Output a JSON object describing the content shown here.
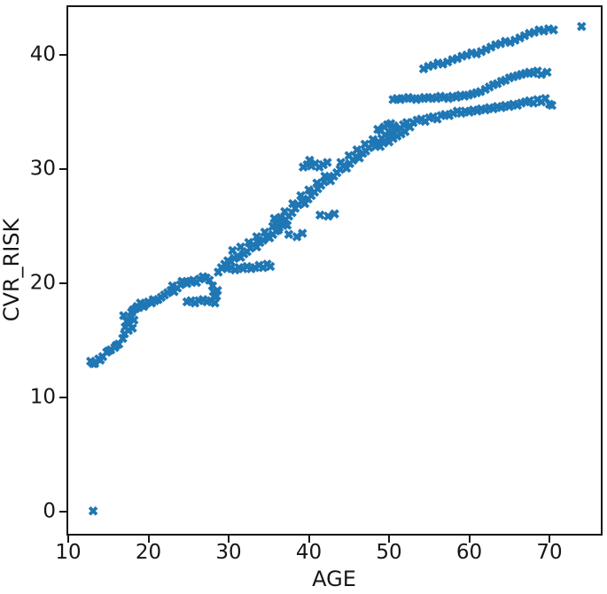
{
  "chart_data": {
    "type": "scatter",
    "title": "",
    "xlabel": "AGE",
    "ylabel": "CVR_RISK",
    "xlim": [
      10,
      76.4
    ],
    "ylim": [
      -1.9,
      44.2
    ],
    "xticks": [
      10,
      20,
      30,
      40,
      50,
      60,
      70
    ],
    "yticks": [
      0,
      10,
      20,
      30,
      40
    ],
    "grid": false,
    "legend": "none",
    "marker": "X",
    "marker_color": "#1f77b4",
    "axis_color": "#161616",
    "points": [
      [
        13.1,
        0.1
      ],
      [
        74,
        42.5
      ],
      [
        12.8,
        13.2
      ],
      [
        13.1,
        13
      ],
      [
        13.3,
        13
      ],
      [
        13.8,
        13.4
      ],
      [
        14,
        13.3
      ],
      [
        14.3,
        13.6
      ],
      [
        14.8,
        14
      ],
      [
        15,
        14.1
      ],
      [
        15.3,
        14.2
      ],
      [
        15.8,
        14.4
      ],
      [
        16,
        14.6
      ],
      [
        16.3,
        14.7
      ],
      [
        16.8,
        15.2
      ],
      [
        17,
        15.6
      ],
      [
        17.1,
        16.2
      ],
      [
        17.3,
        16.7
      ],
      [
        16.9,
        17.2
      ],
      [
        17.5,
        15.9
      ],
      [
        17.6,
        16.5
      ],
      [
        17.8,
        17
      ],
      [
        17.9,
        17.5
      ],
      [
        18.1,
        17.7
      ],
      [
        18,
        16.1
      ],
      [
        18.2,
        16.8
      ],
      [
        18.4,
        17.8
      ],
      [
        18.6,
        18
      ],
      [
        18.8,
        17.9
      ],
      [
        19,
        18.3
      ],
      [
        19.2,
        18.1
      ],
      [
        19.4,
        18
      ],
      [
        19.6,
        18.2
      ],
      [
        20,
        18.4
      ],
      [
        20.4,
        18.3
      ],
      [
        20.6,
        18.6
      ],
      [
        20.8,
        18.5
      ],
      [
        21.2,
        18.6
      ],
      [
        21.6,
        18.8
      ],
      [
        22,
        19
      ],
      [
        22.4,
        19.2
      ],
      [
        22.8,
        19.4
      ],
      [
        23,
        19.8
      ],
      [
        23.2,
        19.3
      ],
      [
        23.6,
        19.6
      ],
      [
        24,
        19.9
      ],
      [
        24.2,
        20.2
      ],
      [
        24.4,
        20.1
      ],
      [
        24.8,
        20
      ],
      [
        25.2,
        20.2
      ],
      [
        25.6,
        20.3
      ],
      [
        26,
        20.1
      ],
      [
        26.4,
        20.4
      ],
      [
        26.8,
        20.6
      ],
      [
        27.2,
        20.5
      ],
      [
        27.6,
        20.3
      ],
      [
        28,
        19.8
      ],
      [
        28.1,
        19.3
      ],
      [
        28.2,
        18.9
      ],
      [
        24.8,
        18.4
      ],
      [
        25.3,
        18.5
      ],
      [
        25.8,
        18.3
      ],
      [
        26.3,
        18.5
      ],
      [
        26.8,
        18.6
      ],
      [
        27.3,
        18.4
      ],
      [
        27.8,
        18.5
      ],
      [
        28.3,
        18.3
      ],
      [
        28.5,
        18.9
      ],
      [
        28.6,
        19.4
      ],
      [
        28.7,
        21
      ],
      [
        29.1,
        21.4
      ],
      [
        29.5,
        21.7
      ],
      [
        29.9,
        22
      ],
      [
        30.3,
        21.9
      ],
      [
        30.7,
        22.2
      ],
      [
        31.1,
        22.4
      ],
      [
        31.5,
        22.3
      ],
      [
        31.9,
        22.6
      ],
      [
        32.3,
        22.8
      ],
      [
        32.7,
        23.1
      ],
      [
        33.1,
        23.4
      ],
      [
        33.5,
        23.2
      ],
      [
        33.9,
        23.6
      ],
      [
        34.3,
        23.8
      ],
      [
        34.7,
        24.1
      ],
      [
        35.1,
        24
      ],
      [
        35.5,
        24.3
      ],
      [
        35.9,
        24.6
      ],
      [
        36.3,
        24.9
      ],
      [
        36.7,
        25.3
      ],
      [
        37.1,
        25.6
      ],
      [
        37.5,
        25.9
      ],
      [
        37.9,
        26.2
      ],
      [
        38.3,
        26.6
      ],
      [
        38.7,
        26.9
      ],
      [
        39.1,
        27.2
      ],
      [
        39.5,
        27
      ],
      [
        39.9,
        27.4
      ],
      [
        40.3,
        27.7
      ],
      [
        40.7,
        28
      ],
      [
        41.1,
        28.3
      ],
      [
        41.5,
        28.6
      ],
      [
        41.9,
        28.9
      ],
      [
        42.3,
        29.2
      ],
      [
        42.7,
        29
      ],
      [
        43.1,
        29.4
      ],
      [
        43.5,
        29.7
      ],
      [
        43.9,
        30
      ],
      [
        44.3,
        30.3
      ],
      [
        44.7,
        30.1
      ],
      [
        45.1,
        30.5
      ],
      [
        45.5,
        30.8
      ],
      [
        45.9,
        31.1
      ],
      [
        46.3,
        31
      ],
      [
        46.7,
        31.4
      ],
      [
        47.1,
        31.6
      ],
      [
        47.5,
        31.9
      ],
      [
        47.9,
        32.2
      ],
      [
        48.3,
        32
      ],
      [
        48.7,
        32.4
      ],
      [
        49.1,
        32.7
      ],
      [
        49.5,
        33
      ],
      [
        49.9,
        32.8
      ],
      [
        50.3,
        33.2
      ],
      [
        30.5,
        22.9
      ],
      [
        31.5,
        23.2
      ],
      [
        32.5,
        23.6
      ],
      [
        33.5,
        24.1
      ],
      [
        34.5,
        24.5
      ],
      [
        35.5,
        25
      ],
      [
        35.7,
        25.7
      ],
      [
        36,
        25.5
      ],
      [
        36.2,
        24.7
      ],
      [
        36.5,
        25.8
      ],
      [
        36.8,
        25.1
      ],
      [
        37,
        26.3
      ],
      [
        37.3,
        25.1
      ],
      [
        38,
        27
      ],
      [
        39,
        27.7
      ],
      [
        40,
        28.2
      ],
      [
        41,
        28.8
      ],
      [
        42,
        29.4
      ],
      [
        44,
        30.6
      ],
      [
        45,
        31.2
      ],
      [
        46,
        31.7
      ],
      [
        47,
        32.2
      ],
      [
        48,
        32.6
      ],
      [
        29.8,
        21.3
      ],
      [
        30.3,
        21.4
      ],
      [
        30.8,
        21.2
      ],
      [
        31.3,
        21.4
      ],
      [
        31.8,
        21.3
      ],
      [
        32.3,
        21.5
      ],
      [
        32.8,
        21.3
      ],
      [
        33.3,
        21.4
      ],
      [
        33.8,
        21.6
      ],
      [
        34.3,
        21.4
      ],
      [
        34.8,
        21.7
      ],
      [
        35.2,
        21.5
      ],
      [
        39.3,
        30.2
      ],
      [
        39.8,
        30.4
      ],
      [
        40.1,
        30.8
      ],
      [
        40.3,
        30.3
      ],
      [
        40.8,
        30.5
      ],
      [
        41.3,
        30.2
      ],
      [
        41.8,
        30.4
      ],
      [
        42.3,
        30.6
      ],
      [
        41.4,
        26
      ],
      [
        42.4,
        25.9
      ],
      [
        43.2,
        26.1
      ],
      [
        37.5,
        24.3
      ],
      [
        38.5,
        24.1
      ],
      [
        39.2,
        24.4
      ],
      [
        48.6,
        33.5
      ],
      [
        48.9,
        32
      ],
      [
        49,
        33.4
      ],
      [
        49.3,
        32.3
      ],
      [
        49.4,
        33.7
      ],
      [
        49.8,
        33.9
      ],
      [
        50,
        32.4
      ],
      [
        50.2,
        34
      ],
      [
        50.5,
        32.7
      ],
      [
        50.6,
        33.8
      ],
      [
        51,
        32.9
      ],
      [
        51,
        33.4
      ],
      [
        51.4,
        33.6
      ],
      [
        51.5,
        33.1
      ],
      [
        51.8,
        33.9
      ],
      [
        52,
        33.3
      ],
      [
        52.2,
        34.1
      ],
      [
        52.6,
        33.7
      ],
      [
        53,
        34.1
      ],
      [
        53.5,
        34.3
      ],
      [
        54,
        34.4
      ],
      [
        54.5,
        34.2
      ],
      [
        55,
        34.5
      ],
      [
        55.5,
        34.6
      ],
      [
        56,
        34.4
      ],
      [
        56.5,
        34.7
      ],
      [
        57,
        34.8
      ],
      [
        57.5,
        34.7
      ],
      [
        58,
        34.9
      ],
      [
        58.5,
        35.1
      ],
      [
        59,
        34.9
      ],
      [
        59.5,
        35.1
      ],
      [
        60,
        35
      ],
      [
        60.5,
        35.2
      ],
      [
        61,
        35.1
      ],
      [
        61.5,
        35.3
      ],
      [
        62,
        35.2
      ],
      [
        62.5,
        35.4
      ],
      [
        63,
        35.3
      ],
      [
        63.5,
        35.5
      ],
      [
        64,
        35.4
      ],
      [
        64.5,
        35.6
      ],
      [
        65,
        35.5
      ],
      [
        65.5,
        35.7
      ],
      [
        66,
        35.6
      ],
      [
        66.5,
        35.8
      ],
      [
        67,
        35.9
      ],
      [
        67.5,
        36
      ],
      [
        68,
        35.8
      ],
      [
        68.5,
        36.1
      ],
      [
        69,
        35.9
      ],
      [
        69.5,
        36.2
      ],
      [
        70,
        35.7
      ],
      [
        70.3,
        35.6
      ],
      [
        50.5,
        36.1
      ],
      [
        51,
        36.2
      ],
      [
        51.4,
        36.1
      ],
      [
        51.9,
        36.2
      ],
      [
        52.4,
        36.3
      ],
      [
        52.9,
        36.2
      ],
      [
        53.4,
        36.1
      ],
      [
        53.9,
        36.2
      ],
      [
        54.4,
        36.3
      ],
      [
        54.9,
        36.2
      ],
      [
        55.4,
        36.3
      ],
      [
        55.9,
        36.2
      ],
      [
        56.4,
        36.4
      ],
      [
        56.9,
        36.3
      ],
      [
        57.4,
        36.2
      ],
      [
        57.9,
        36.4
      ],
      [
        58.4,
        36.3
      ],
      [
        58.9,
        36.5
      ],
      [
        59.4,
        36.4
      ],
      [
        59.9,
        36.5
      ],
      [
        60.4,
        36.6
      ],
      [
        60.9,
        36.7
      ],
      [
        61.4,
        36.8
      ],
      [
        62,
        37
      ],
      [
        62.5,
        37.2
      ],
      [
        63,
        37.4
      ],
      [
        63.5,
        37.5
      ],
      [
        64,
        37.7
      ],
      [
        64.5,
        37.8
      ],
      [
        65,
        38
      ],
      [
        65.5,
        38.1
      ],
      [
        66,
        38.2
      ],
      [
        66.5,
        38.3
      ],
      [
        67,
        38.4
      ],
      [
        67.5,
        38.5
      ],
      [
        68,
        38.4
      ],
      [
        68.5,
        38.6
      ],
      [
        69,
        38.3
      ],
      [
        69.7,
        38.5
      ],
      [
        54.3,
        38.8
      ],
      [
        54.9,
        39
      ],
      [
        55.5,
        39.1
      ],
      [
        56.1,
        39.3
      ],
      [
        56.7,
        39.2
      ],
      [
        57.3,
        39.4
      ],
      [
        57.9,
        39.6
      ],
      [
        58.5,
        39.7
      ],
      [
        59.1,
        39.9
      ],
      [
        59.7,
        40
      ],
      [
        60.3,
        40.2
      ],
      [
        60.9,
        40.1
      ],
      [
        61.5,
        40.3
      ],
      [
        62.1,
        40.5
      ],
      [
        62.7,
        40.7
      ],
      [
        63.3,
        40.9
      ],
      [
        63.9,
        41
      ],
      [
        64.5,
        41.2
      ],
      [
        65.1,
        41.1
      ],
      [
        65.7,
        41.3
      ],
      [
        66.3,
        41.5
      ],
      [
        66.9,
        41.7
      ],
      [
        67.5,
        41.9
      ],
      [
        68.1,
        42
      ],
      [
        68.7,
        42.2
      ],
      [
        69.3,
        42.1
      ],
      [
        69.9,
        42.3
      ],
      [
        70.5,
        42.2
      ]
    ]
  }
}
